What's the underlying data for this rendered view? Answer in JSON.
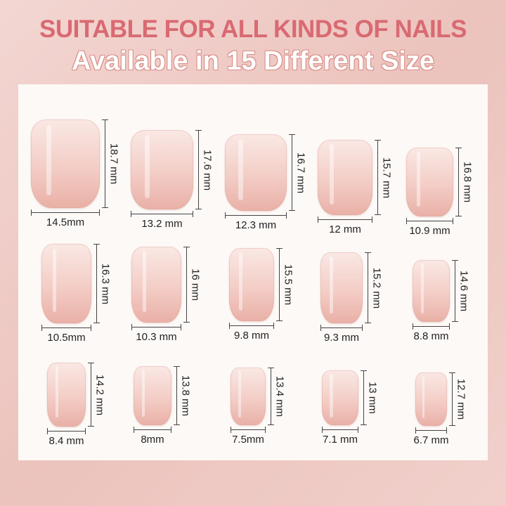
{
  "header": {
    "title": "SUITABLE FOR ALL KINDS OF NAILS",
    "subtitle": "Available in 15 Different Size"
  },
  "colors": {
    "title": "#d96a72",
    "nail_top": "#fae8e4",
    "nail_bottom": "#e9b0a6",
    "background": "#f3d6d2"
  },
  "nails": [
    {
      "width": "14.5mm",
      "height": "18.7 mm"
    },
    {
      "width": "13.2 mm",
      "height": "17.6 mm"
    },
    {
      "width": "12.3 mm",
      "height": "16.7 mm"
    },
    {
      "width": "12 mm",
      "height": "15.7 mm"
    },
    {
      "width": "10.9 mm",
      "height": "16.8 mm"
    },
    {
      "width": "10.5mm",
      "height": "16.3 mm"
    },
    {
      "width": "10.3 mm",
      "height": "16 mm"
    },
    {
      "width": "9.8 mm",
      "height": "15.5 mm"
    },
    {
      "width": "9.3 mm",
      "height": "15.2 mm"
    },
    {
      "width": "8.8 mm",
      "height": "14.6 mm"
    },
    {
      "width": "8.4 mm",
      "height": "14.2 mm"
    },
    {
      "width": "8mm",
      "height": "13.8 mm"
    },
    {
      "width": "7.5mm",
      "height": "13.4 mm"
    },
    {
      "width": "7.1 mm",
      "height": "13 mm"
    },
    {
      "width": "6.7 mm",
      "height": "12.7 mm"
    }
  ]
}
